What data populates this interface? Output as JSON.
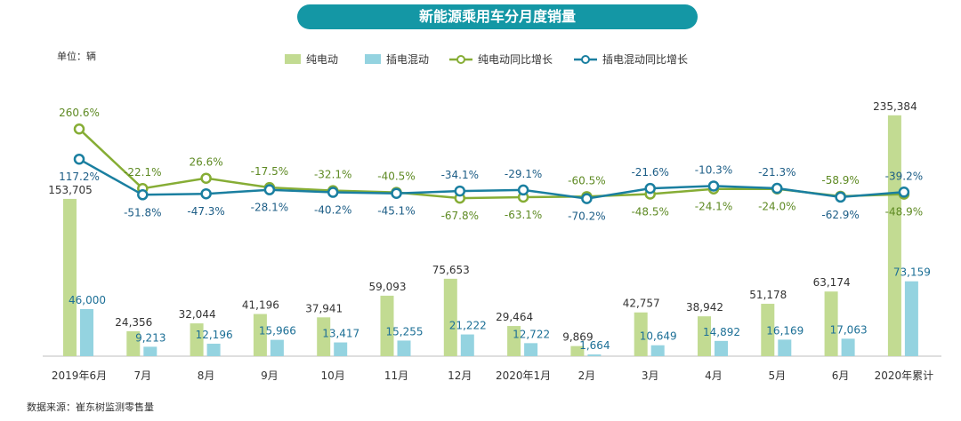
{
  "title": "新能源乘用车分月度销量",
  "unit_label": "单位：辆",
  "source": "数据来源：崔东树监测零售量",
  "colors": {
    "title_bg": "#1497a5",
    "bev_bar": "#c2db92",
    "phev_bar": "#94d3e0",
    "bev_line": "#86ad35",
    "phev_line": "#1a7fa0",
    "bev_label": "#333333",
    "phev_label": "#1c6f96",
    "bev_growth_label": "#5e8a23",
    "phev_growth_label": "#1c5d86"
  },
  "chart_data": {
    "type": "bar",
    "title": "新能源乘用车分月度销量",
    "ylabel": "辆",
    "categories": [
      "2019年6月",
      "7月",
      "8月",
      "9月",
      "10月",
      "11月",
      "12月",
      "2020年1月",
      "2月",
      "3月",
      "4月",
      "5月",
      "6月",
      "2020年累计"
    ],
    "series": [
      {
        "name": "纯电动",
        "kind": "bar",
        "values": [
          153705,
          24356,
          32044,
          41196,
          37941,
          59093,
          75653,
          29464,
          9869,
          42757,
          38942,
          51178,
          63174,
          235384
        ],
        "labels": [
          "153,705",
          "24,356",
          "32,044",
          "41,196",
          "37,941",
          "59,093",
          "75,653",
          "29,464",
          "9,869",
          "42,757",
          "38,942",
          "51,178",
          "63,174",
          "235,384"
        ]
      },
      {
        "name": "插电混动",
        "kind": "bar",
        "values": [
          46000,
          9213,
          12196,
          15966,
          13417,
          15255,
          21222,
          12722,
          1664,
          10649,
          14892,
          16169,
          17063,
          73159
        ],
        "labels": [
          "46,000",
          "9,213",
          "12,196",
          "15,966",
          "13,417",
          "15,255",
          "21,222",
          "12,722",
          "1,664",
          "10,649",
          "14,892",
          "16,169",
          "17,063",
          "73,159"
        ]
      },
      {
        "name": "纯电动同比增长",
        "kind": "line",
        "values": [
          260.6,
          -22.1,
          26.6,
          -17.5,
          -32.1,
          -40.5,
          -67.8,
          -63.1,
          -60.5,
          -48.5,
          -24.1,
          -24.0,
          -58.9,
          -48.9
        ],
        "labels": [
          "260.6%",
          "-22.1%",
          "26.6%",
          "-17.5%",
          "-32.1%",
          "-40.5%",
          "-67.8%",
          "-63.1%",
          "-60.5%",
          "-48.5%",
          "-24.1%",
          "-24.0%",
          "-58.9%",
          "-48.9%"
        ]
      },
      {
        "name": "插电混动同比增长",
        "kind": "line",
        "values": [
          117.2,
          -51.8,
          -47.3,
          -28.1,
          -40.2,
          -45.1,
          -34.1,
          -29.1,
          -70.2,
          -21.6,
          -10.3,
          -21.3,
          -62.9,
          -39.2
        ],
        "labels": [
          "117.2%",
          "-51.8%",
          "-47.3%",
          "-28.1%",
          "-40.2%",
          "-45.1%",
          "-34.1%",
          "-29.1%",
          "-70.2%",
          "-21.6%",
          "-10.3%",
          "-21.3%",
          "-62.9%",
          "-39.2%"
        ]
      }
    ],
    "legend": [
      "纯电动",
      "插电混动",
      "纯电动同比增长",
      "插电混动同比增长"
    ],
    "legend_position": "top-center",
    "bar_ylim": [
      0,
      250000
    ],
    "line_ylim": [
      -100,
      300
    ],
    "grid": false
  }
}
